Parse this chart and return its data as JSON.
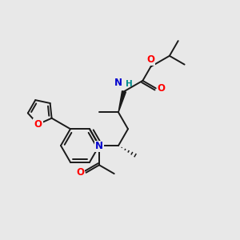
{
  "bg_color": "#e8e8e8",
  "atom_colors": {
    "O": "#ff0000",
    "N": "#0000cd",
    "N_NH": "#008b8b",
    "C": "#1a1a1a"
  },
  "figsize": [
    3.0,
    3.0
  ],
  "dpi": 100
}
